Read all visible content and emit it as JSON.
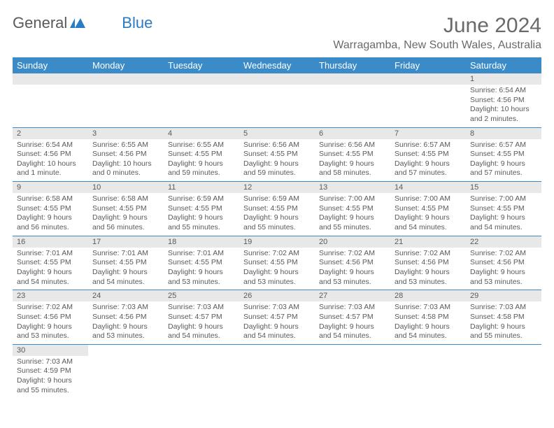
{
  "logo": {
    "word1": "General",
    "word2": "Blue"
  },
  "title": "June 2024",
  "location": "Warragamba, New South Wales, Australia",
  "colors": {
    "header_bg": "#3b8bc9",
    "header_text": "#ffffff",
    "daynum_bg": "#e8e8e8",
    "body_text": "#5a5a5a",
    "cell_border": "#3b8bc9",
    "page_bg": "#ffffff",
    "logo_gray": "#5a5a5a",
    "logo_blue": "#2a7cc4"
  },
  "typography": {
    "title_fontsize": 30,
    "location_fontsize": 16,
    "header_fontsize": 13,
    "daynum_fontsize": 11,
    "body_fontsize": 10.5
  },
  "weekdays": [
    "Sunday",
    "Monday",
    "Tuesday",
    "Wednesday",
    "Thursday",
    "Friday",
    "Saturday"
  ],
  "weeks": [
    [
      null,
      null,
      null,
      null,
      null,
      null,
      {
        "n": "1",
        "sunrise": "Sunrise: 6:54 AM",
        "sunset": "Sunset: 4:56 PM",
        "daylight": "Daylight: 10 hours and 2 minutes."
      }
    ],
    [
      {
        "n": "2",
        "sunrise": "Sunrise: 6:54 AM",
        "sunset": "Sunset: 4:56 PM",
        "daylight": "Daylight: 10 hours and 1 minute."
      },
      {
        "n": "3",
        "sunrise": "Sunrise: 6:55 AM",
        "sunset": "Sunset: 4:56 PM",
        "daylight": "Daylight: 10 hours and 0 minutes."
      },
      {
        "n": "4",
        "sunrise": "Sunrise: 6:55 AM",
        "sunset": "Sunset: 4:55 PM",
        "daylight": "Daylight: 9 hours and 59 minutes."
      },
      {
        "n": "5",
        "sunrise": "Sunrise: 6:56 AM",
        "sunset": "Sunset: 4:55 PM",
        "daylight": "Daylight: 9 hours and 59 minutes."
      },
      {
        "n": "6",
        "sunrise": "Sunrise: 6:56 AM",
        "sunset": "Sunset: 4:55 PM",
        "daylight": "Daylight: 9 hours and 58 minutes."
      },
      {
        "n": "7",
        "sunrise": "Sunrise: 6:57 AM",
        "sunset": "Sunset: 4:55 PM",
        "daylight": "Daylight: 9 hours and 57 minutes."
      },
      {
        "n": "8",
        "sunrise": "Sunrise: 6:57 AM",
        "sunset": "Sunset: 4:55 PM",
        "daylight": "Daylight: 9 hours and 57 minutes."
      }
    ],
    [
      {
        "n": "9",
        "sunrise": "Sunrise: 6:58 AM",
        "sunset": "Sunset: 4:55 PM",
        "daylight": "Daylight: 9 hours and 56 minutes."
      },
      {
        "n": "10",
        "sunrise": "Sunrise: 6:58 AM",
        "sunset": "Sunset: 4:55 PM",
        "daylight": "Daylight: 9 hours and 56 minutes."
      },
      {
        "n": "11",
        "sunrise": "Sunrise: 6:59 AM",
        "sunset": "Sunset: 4:55 PM",
        "daylight": "Daylight: 9 hours and 55 minutes."
      },
      {
        "n": "12",
        "sunrise": "Sunrise: 6:59 AM",
        "sunset": "Sunset: 4:55 PM",
        "daylight": "Daylight: 9 hours and 55 minutes."
      },
      {
        "n": "13",
        "sunrise": "Sunrise: 7:00 AM",
        "sunset": "Sunset: 4:55 PM",
        "daylight": "Daylight: 9 hours and 55 minutes."
      },
      {
        "n": "14",
        "sunrise": "Sunrise: 7:00 AM",
        "sunset": "Sunset: 4:55 PM",
        "daylight": "Daylight: 9 hours and 54 minutes."
      },
      {
        "n": "15",
        "sunrise": "Sunrise: 7:00 AM",
        "sunset": "Sunset: 4:55 PM",
        "daylight": "Daylight: 9 hours and 54 minutes."
      }
    ],
    [
      {
        "n": "16",
        "sunrise": "Sunrise: 7:01 AM",
        "sunset": "Sunset: 4:55 PM",
        "daylight": "Daylight: 9 hours and 54 minutes."
      },
      {
        "n": "17",
        "sunrise": "Sunrise: 7:01 AM",
        "sunset": "Sunset: 4:55 PM",
        "daylight": "Daylight: 9 hours and 54 minutes."
      },
      {
        "n": "18",
        "sunrise": "Sunrise: 7:01 AM",
        "sunset": "Sunset: 4:55 PM",
        "daylight": "Daylight: 9 hours and 53 minutes."
      },
      {
        "n": "19",
        "sunrise": "Sunrise: 7:02 AM",
        "sunset": "Sunset: 4:55 PM",
        "daylight": "Daylight: 9 hours and 53 minutes."
      },
      {
        "n": "20",
        "sunrise": "Sunrise: 7:02 AM",
        "sunset": "Sunset: 4:56 PM",
        "daylight": "Daylight: 9 hours and 53 minutes."
      },
      {
        "n": "21",
        "sunrise": "Sunrise: 7:02 AM",
        "sunset": "Sunset: 4:56 PM",
        "daylight": "Daylight: 9 hours and 53 minutes."
      },
      {
        "n": "22",
        "sunrise": "Sunrise: 7:02 AM",
        "sunset": "Sunset: 4:56 PM",
        "daylight": "Daylight: 9 hours and 53 minutes."
      }
    ],
    [
      {
        "n": "23",
        "sunrise": "Sunrise: 7:02 AM",
        "sunset": "Sunset: 4:56 PM",
        "daylight": "Daylight: 9 hours and 53 minutes."
      },
      {
        "n": "24",
        "sunrise": "Sunrise: 7:03 AM",
        "sunset": "Sunset: 4:56 PM",
        "daylight": "Daylight: 9 hours and 53 minutes."
      },
      {
        "n": "25",
        "sunrise": "Sunrise: 7:03 AM",
        "sunset": "Sunset: 4:57 PM",
        "daylight": "Daylight: 9 hours and 54 minutes."
      },
      {
        "n": "26",
        "sunrise": "Sunrise: 7:03 AM",
        "sunset": "Sunset: 4:57 PM",
        "daylight": "Daylight: 9 hours and 54 minutes."
      },
      {
        "n": "27",
        "sunrise": "Sunrise: 7:03 AM",
        "sunset": "Sunset: 4:57 PM",
        "daylight": "Daylight: 9 hours and 54 minutes."
      },
      {
        "n": "28",
        "sunrise": "Sunrise: 7:03 AM",
        "sunset": "Sunset: 4:58 PM",
        "daylight": "Daylight: 9 hours and 54 minutes."
      },
      {
        "n": "29",
        "sunrise": "Sunrise: 7:03 AM",
        "sunset": "Sunset: 4:58 PM",
        "daylight": "Daylight: 9 hours and 55 minutes."
      }
    ],
    [
      {
        "n": "30",
        "sunrise": "Sunrise: 7:03 AM",
        "sunset": "Sunset: 4:59 PM",
        "daylight": "Daylight: 9 hours and 55 minutes."
      },
      null,
      null,
      null,
      null,
      null,
      null
    ]
  ]
}
